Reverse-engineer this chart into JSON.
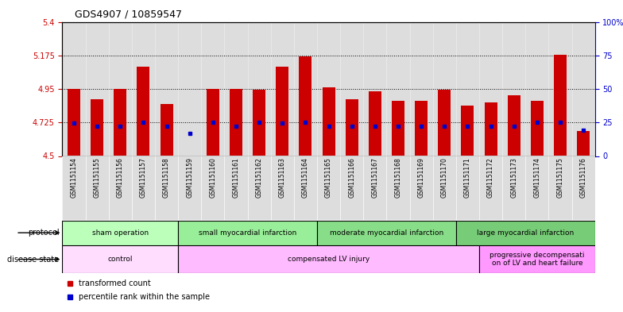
{
  "title": "GDS4907 / 10859547",
  "samples": [
    "GSM1151154",
    "GSM1151155",
    "GSM1151156",
    "GSM1151157",
    "GSM1151158",
    "GSM1151159",
    "GSM1151160",
    "GSM1151161",
    "GSM1151162",
    "GSM1151163",
    "GSM1151164",
    "GSM1151165",
    "GSM1151166",
    "GSM1151167",
    "GSM1151168",
    "GSM1151169",
    "GSM1151170",
    "GSM1151171",
    "GSM1151172",
    "GSM1151173",
    "GSM1151174",
    "GSM1151175",
    "GSM1151176"
  ],
  "bar_values": [
    4.95,
    4.88,
    4.95,
    5.1,
    4.85,
    4.505,
    4.95,
    4.95,
    4.945,
    5.1,
    5.17,
    4.96,
    4.88,
    4.935,
    4.87,
    4.87,
    4.945,
    4.84,
    4.86,
    4.91,
    4.87,
    5.18,
    4.67
  ],
  "blue_values": [
    4.72,
    4.7,
    4.7,
    4.725,
    4.7,
    4.65,
    4.725,
    4.7,
    4.725,
    4.72,
    4.725,
    4.7,
    4.7,
    4.7,
    4.7,
    4.7,
    4.7,
    4.7,
    4.7,
    4.7,
    4.725,
    4.725,
    4.675
  ],
  "baseline": 4.5,
  "ylim_left": [
    4.5,
    5.4
  ],
  "yticks_left": [
    4.5,
    4.725,
    4.95,
    5.175,
    5.4
  ],
  "ytick_labels_left": [
    "4.5",
    "4.725",
    "4.95",
    "5.175",
    "5.4"
  ],
  "ylim_right": [
    0,
    100
  ],
  "yticks_right": [
    0,
    25,
    50,
    75,
    100
  ],
  "ytick_labels_right": [
    "0",
    "25",
    "50",
    "75",
    "100%"
  ],
  "hlines": [
    4.725,
    4.95,
    5.175
  ],
  "bar_color": "#cc0000",
  "blue_color": "#0000cc",
  "protocol_groups": [
    {
      "label": "sham operation",
      "start": 0,
      "end": 4,
      "color": "#bbffbb"
    },
    {
      "label": "small myocardial infarction",
      "start": 5,
      "end": 10,
      "color": "#99ee99"
    },
    {
      "label": "moderate myocardial infarction",
      "start": 11,
      "end": 16,
      "color": "#88dd88"
    },
    {
      "label": "large myocardial infarction",
      "start": 17,
      "end": 22,
      "color": "#77cc77"
    }
  ],
  "disease_groups": [
    {
      "label": "control",
      "start": 0,
      "end": 4,
      "color": "#ffddff"
    },
    {
      "label": "compensated LV injury",
      "start": 5,
      "end": 17,
      "color": "#ffbbff"
    },
    {
      "label": "progressive decompensati\non of LV and heart failure",
      "start": 18,
      "end": 22,
      "color": "#ff99ff"
    }
  ],
  "legend_items": [
    {
      "label": "transformed count",
      "color": "#cc0000"
    },
    {
      "label": "percentile rank within the sample",
      "color": "#0000cc"
    }
  ],
  "bar_facecolor": "#dddddd",
  "title_fontsize": 9,
  "bar_width": 0.55
}
